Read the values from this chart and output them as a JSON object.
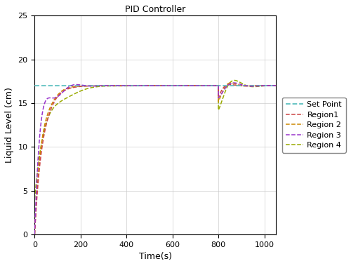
{
  "title": "PID Controller",
  "xlabel": "Time(s)",
  "ylabel": "Liquid Level (cm)",
  "xlim": [
    0,
    1050
  ],
  "ylim": [
    0,
    25
  ],
  "setpoint": 17,
  "disturbance_time": 800,
  "sp_color": "#5bbfbf",
  "region1_color": "#cc4444",
  "region2_color": "#cc8800",
  "region3_color": "#9933cc",
  "region4_color": "#99aa00",
  "xticks": [
    0,
    200,
    400,
    600,
    800,
    1000
  ],
  "yticks": [
    0,
    5,
    10,
    15,
    20,
    25
  ],
  "title_fontsize": 9,
  "axis_fontsize": 9,
  "tick_fontsize": 8
}
